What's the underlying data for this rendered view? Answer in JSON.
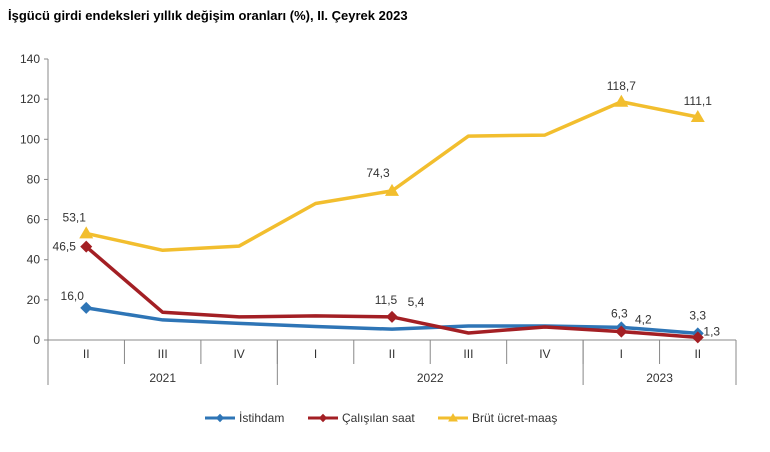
{
  "chart_data": {
    "type": "line",
    "title": "İşgücü girdi endeksleri yıllık değişim oranları (%), II. Çeyrek 2023",
    "categories": [
      "II",
      "III",
      "IV",
      "I",
      "II",
      "III",
      "IV",
      "I",
      "II"
    ],
    "year_groups": [
      {
        "label": "2021",
        "span": 3
      },
      {
        "label": "2022",
        "span": 4
      },
      {
        "label": "2023",
        "span": 2
      }
    ],
    "ylim": [
      0,
      140
    ],
    "yticks": [
      0,
      20,
      40,
      60,
      80,
      100,
      120,
      140
    ],
    "grid": false,
    "legend": "bottom",
    "series": [
      {
        "name": "İstihdam",
        "color": "#2E75B6",
        "marker": "diamond",
        "values": [
          16.0,
          10.0,
          8.3,
          6.7,
          5.4,
          7.0,
          7.0,
          6.3,
          3.3
        ],
        "labels": [
          "16,0",
          null,
          null,
          null,
          null,
          null,
          null,
          "6,3",
          "3,3"
        ]
      },
      {
        "name": "Çalışılan saat",
        "color": "#A31F24",
        "marker": "diamond",
        "values": [
          46.5,
          13.8,
          11.5,
          12.0,
          11.5,
          3.5,
          6.5,
          4.2,
          1.3
        ],
        "labels": [
          "46,5",
          null,
          null,
          null,
          "11,5",
          null,
          null,
          "4,2",
          "1,3"
        ]
      },
      {
        "name": "Brüt ücret-maaş",
        "color": "#F2BE2E",
        "marker": "triangle",
        "values": [
          53.1,
          44.7,
          46.8,
          68.0,
          74.3,
          101.6,
          102.1,
          118.7,
          111.1
        ],
        "labels": [
          "53,1",
          null,
          null,
          null,
          "74,3",
          null,
          null,
          "118,7",
          "111,1"
        ]
      }
    ],
    "extra_labels": [
      {
        "series": 0,
        "index": 4,
        "text": "5,4"
      }
    ]
  }
}
